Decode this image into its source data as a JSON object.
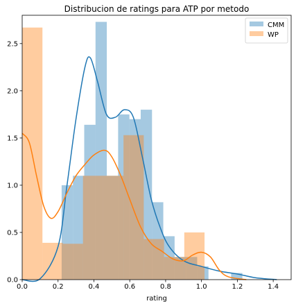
{
  "chart_data": {
    "type": "histogram",
    "title": "Distribucion de ratings para ATP por metodo",
    "xlabel": "rating",
    "ylabel": "",
    "xlim": [
      0.0,
      1.5
    ],
    "ylim": [
      0.0,
      2.8
    ],
    "grid": false,
    "legend_position": "top-right",
    "x_ticks": [
      "0.0",
      "0.2",
      "0.4",
      "0.6",
      "0.8",
      "1.0",
      "1.2",
      "1.4"
    ],
    "y_ticks": [
      "0.0",
      "0.5",
      "1.0",
      "1.5",
      "2.0",
      "2.5"
    ],
    "series": [
      {
        "name": "CMM",
        "color": "#1f77b4",
        "fill_color": "#1f77b4",
        "fill_opacity": 0.4,
        "bins": [
          {
            "x0": 0.22,
            "x1": 0.283,
            "height": 1.0
          },
          {
            "x0": 0.283,
            "x1": 0.346,
            "height": 1.1
          },
          {
            "x0": 0.346,
            "x1": 0.409,
            "height": 1.64
          },
          {
            "x0": 0.409,
            "x1": 0.472,
            "height": 2.73
          },
          {
            "x0": 0.472,
            "x1": 0.535,
            "height": 1.1
          },
          {
            "x0": 0.535,
            "x1": 0.598,
            "height": 1.75
          },
          {
            "x0": 0.598,
            "x1": 0.661,
            "height": 1.7
          },
          {
            "x0": 0.661,
            "x1": 0.724,
            "height": 1.8
          },
          {
            "x0": 0.724,
            "x1": 0.787,
            "height": 0.82
          },
          {
            "x0": 0.787,
            "x1": 0.85,
            "height": 0.46
          },
          {
            "x0": 0.85,
            "x1": 0.913,
            "height": 0.24
          },
          {
            "x0": 0.913,
            "x1": 0.976,
            "height": 0.24
          },
          {
            "x0": 0.976,
            "x1": 1.039,
            "height": 0.14
          },
          {
            "x0": 1.039,
            "x1": 1.102,
            "height": 0.0
          },
          {
            "x0": 1.102,
            "x1": 1.165,
            "height": 0.0
          },
          {
            "x0": 1.165,
            "x1": 1.228,
            "height": 0.07
          },
          {
            "x0": 1.228,
            "x1": 1.291,
            "height": 0.0
          }
        ],
        "kde": [
          [
            0.0,
            0.0
          ],
          [
            0.1,
            0.01
          ],
          [
            0.2,
            0.35
          ],
          [
            0.25,
            1.0
          ],
          [
            0.3,
            1.7
          ],
          [
            0.35,
            2.25
          ],
          [
            0.38,
            2.35
          ],
          [
            0.42,
            2.1
          ],
          [
            0.47,
            1.75
          ],
          [
            0.52,
            1.72
          ],
          [
            0.57,
            1.8
          ],
          [
            0.62,
            1.72
          ],
          [
            0.67,
            1.3
          ],
          [
            0.72,
            0.85
          ],
          [
            0.77,
            0.55
          ],
          [
            0.82,
            0.35
          ],
          [
            0.9,
            0.2
          ],
          [
            1.0,
            0.14
          ],
          [
            1.1,
            0.09
          ],
          [
            1.2,
            0.06
          ],
          [
            1.3,
            0.02
          ],
          [
            1.42,
            0.0
          ]
        ]
      },
      {
        "name": "WP",
        "color": "#ff7f0e",
        "fill_color": "#ff7f0e",
        "fill_opacity": 0.4,
        "bins": [
          {
            "x0": 0.0,
            "x1": 0.113,
            "height": 2.67
          },
          {
            "x0": 0.113,
            "x1": 0.226,
            "height": 0.39
          },
          {
            "x0": 0.226,
            "x1": 0.339,
            "height": 0.38
          },
          {
            "x0": 0.339,
            "x1": 0.452,
            "height": 1.1
          },
          {
            "x0": 0.452,
            "x1": 0.565,
            "height": 1.1
          },
          {
            "x0": 0.565,
            "x1": 0.678,
            "height": 1.53
          },
          {
            "x0": 0.678,
            "x1": 0.791,
            "height": 0.43
          },
          {
            "x0": 0.791,
            "x1": 0.904,
            "height": 0.24
          },
          {
            "x0": 0.904,
            "x1": 1.017,
            "height": 0.5
          }
        ],
        "kde": [
          [
            0.0,
            1.55
          ],
          [
            0.04,
            1.45
          ],
          [
            0.08,
            1.1
          ],
          [
            0.12,
            0.78
          ],
          [
            0.16,
            0.65
          ],
          [
            0.2,
            0.72
          ],
          [
            0.25,
            0.92
          ],
          [
            0.3,
            1.1
          ],
          [
            0.35,
            1.22
          ],
          [
            0.4,
            1.32
          ],
          [
            0.46,
            1.37
          ],
          [
            0.5,
            1.3
          ],
          [
            0.55,
            1.1
          ],
          [
            0.6,
            0.85
          ],
          [
            0.66,
            0.56
          ],
          [
            0.72,
            0.38
          ],
          [
            0.78,
            0.3
          ],
          [
            0.84,
            0.22
          ],
          [
            0.9,
            0.2
          ],
          [
            0.95,
            0.26
          ],
          [
            1.0,
            0.29
          ],
          [
            1.05,
            0.24
          ],
          [
            1.1,
            0.1
          ],
          [
            1.15,
            0.03
          ],
          [
            1.25,
            0.0
          ]
        ]
      }
    ]
  }
}
